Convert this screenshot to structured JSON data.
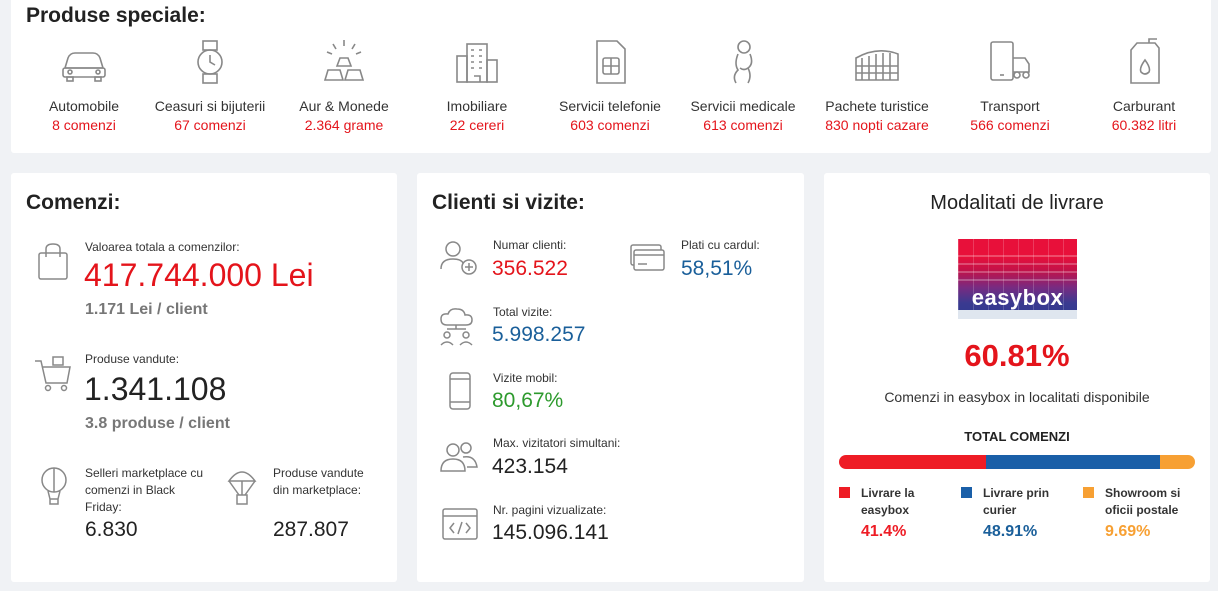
{
  "special": {
    "title": "Produse speciale:",
    "items": [
      {
        "name": "Automobile",
        "value": "8 comenzi",
        "icon": "car-icon"
      },
      {
        "name": "Ceasuri si bijuterii",
        "value": "67 comenzi",
        "icon": "watch-icon"
      },
      {
        "name": "Aur & Monede",
        "value": "2.364 grame",
        "icon": "gold-bars-icon"
      },
      {
        "name": "Imobiliare",
        "value": "22 cereri",
        "icon": "building-icon"
      },
      {
        "name": "Servicii telefonie",
        "value": "603 comenzi",
        "icon": "sim-card-icon"
      },
      {
        "name": "Servicii medicale",
        "value": "613 comenzi",
        "icon": "medical-icon"
      },
      {
        "name": "Pachete turistice",
        "value": "830 nopti cazare",
        "icon": "colosseum-icon"
      },
      {
        "name": "Transport",
        "value": "566 comenzi",
        "icon": "phone-transport-icon"
      },
      {
        "name": "Carburant",
        "value": "60.382 litri",
        "icon": "fuel-can-icon"
      }
    ]
  },
  "orders": {
    "title": "Comenzi:",
    "total_label": "Valoarea totala a comenzilor:",
    "total_value": "417.744.000 Lei",
    "per_client": "1.171 Lei / client",
    "products_label": "Produse vandute:",
    "products_value": "1.341.108",
    "products_per_client": "3.8 produse / client",
    "sellers_label": "Selleri marketplace cu comenzi in Black Friday:",
    "sellers_value": "6.830",
    "mp_label": "Produse vandute din marketplace:",
    "mp_value": "287.807"
  },
  "visits": {
    "title": "Clienti si vizite:",
    "clients_label": "Numar clienti:",
    "clients_value": "356.522",
    "card_label": "Plati cu cardul:",
    "card_value": "58,51%",
    "visits_label": "Total vizite:",
    "visits_value": "5.998.257",
    "mobile_label": "Vizite mobil:",
    "mobile_value": "80,67%",
    "sim_label": "Max. vizitatori simultani:",
    "sim_value": "423.154",
    "pages_label": "Nr. pagini vizualizate:",
    "pages_value": "145.096.141"
  },
  "delivery": {
    "title": "Modalitati de livrare",
    "logo_text": "easybox",
    "percent": "60.81%",
    "caption": "Comenzi in easybox in localitati disponibile",
    "total_label": "TOTAL COMENZI",
    "segments": [
      {
        "label": "Livrare la easybox",
        "value": "41.4%",
        "pct": 41.4,
        "color": "#ee1c25"
      },
      {
        "label": "Livrare prin curier",
        "value": "48.91%",
        "pct": 48.91,
        "color": "#1a5fa8"
      },
      {
        "label": "Showroom si oficii postale",
        "value": "9.69%",
        "pct": 9.69,
        "color": "#f7a033"
      }
    ]
  }
}
